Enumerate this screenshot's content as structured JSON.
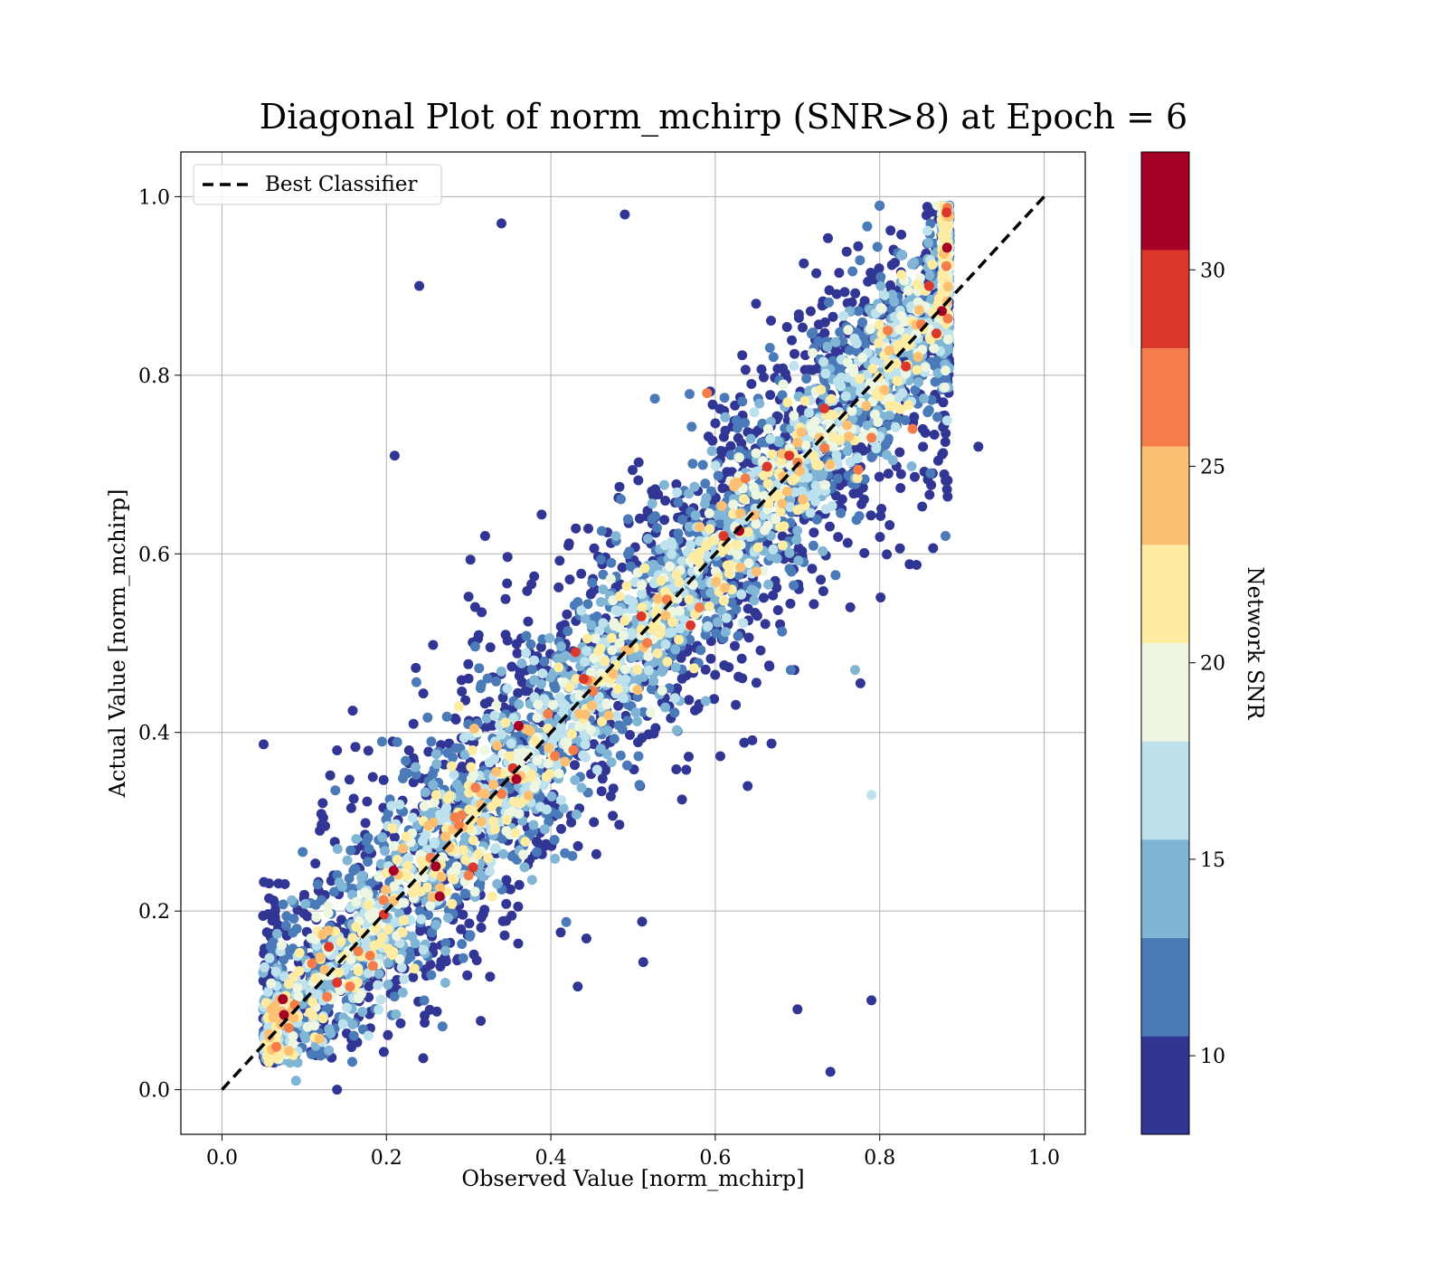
{
  "chart_data": {
    "type": "scatter",
    "title": "Diagonal Plot of norm_mchirp (SNR>8) at Epoch = 6",
    "xlabel": "Observed Value [norm_mchirp]",
    "ylabel": "Actual Value [norm_mchirp]",
    "xlim": [
      -0.05,
      1.05
    ],
    "ylim": [
      -0.05,
      1.05
    ],
    "xticks": [
      "0.0",
      "0.2",
      "0.4",
      "0.6",
      "0.8",
      "1.0"
    ],
    "yticks": [
      "0.0",
      "0.2",
      "0.4",
      "0.6",
      "0.8",
      "1.0"
    ],
    "grid": true,
    "legend": {
      "position": "top-left",
      "entries": [
        "Best Classifier"
      ]
    },
    "reference_line": {
      "name": "Best Classifier",
      "style": "dashed",
      "color": "#000000",
      "x": [
        0,
        1
      ],
      "y": [
        0,
        1
      ]
    },
    "colorbar": {
      "label": "Network SNR",
      "range": [
        8,
        33
      ],
      "ticks": [
        "10",
        "15",
        "20",
        "25",
        "30"
      ],
      "tick_values": [
        10,
        15,
        20,
        25,
        30
      ],
      "bins": [
        {
          "from": 8,
          "to": 10.5,
          "color": "#313695"
        },
        {
          "from": 10.5,
          "to": 13,
          "color": "#4a7ab7"
        },
        {
          "from": 13,
          "to": 15.5,
          "color": "#80b5d6"
        },
        {
          "from": 15.5,
          "to": 18,
          "color": "#bde2ed"
        },
        {
          "from": 18,
          "to": 20.5,
          "color": "#ecf6e1"
        },
        {
          "from": 20.5,
          "to": 23,
          "color": "#fdeca1"
        },
        {
          "from": 23,
          "to": 25.5,
          "color": "#fdbf71"
        },
        {
          "from": 25.5,
          "to": 28,
          "color": "#f57d4a"
        },
        {
          "from": 28,
          "to": 30.5,
          "color": "#db382b"
        },
        {
          "from": 30.5,
          "to": 33,
          "color": "#a50026"
        }
      ]
    },
    "series": [
      {
        "representative_points": [
          {
            "x": 0.26,
            "y": 0.25,
            "snr": 32
          },
          {
            "x": 0.61,
            "y": 0.62,
            "snr": 30
          },
          {
            "x": 0.69,
            "y": 0.71,
            "snr": 30
          },
          {
            "x": 0.51,
            "y": 0.53,
            "snr": 30
          },
          {
            "x": 0.43,
            "y": 0.49,
            "snr": 29
          },
          {
            "x": 0.44,
            "y": 0.46,
            "snr": 29
          },
          {
            "x": 0.14,
            "y": 0.12,
            "snr": 29
          },
          {
            "x": 0.13,
            "y": 0.16,
            "snr": 29
          },
          {
            "x": 0.57,
            "y": 0.52,
            "snr": 28
          },
          {
            "x": 0.86,
            "y": 0.9,
            "snr": 28
          },
          {
            "x": 0.84,
            "y": 0.74,
            "snr": 27
          },
          {
            "x": 0.81,
            "y": 0.85,
            "snr": 27
          },
          {
            "x": 0.59,
            "y": 0.78,
            "snr": 26
          },
          {
            "x": 0.3,
            "y": 0.24,
            "snr": 26
          },
          {
            "x": 0.18,
            "y": 0.15,
            "snr": 26
          },
          {
            "x": 0.79,
            "y": 0.73,
            "snr": 26
          },
          {
            "x": 0.74,
            "y": 0.7,
            "snr": 25
          },
          {
            "x": 0.45,
            "y": 0.43,
            "snr": 25
          },
          {
            "x": 0.36,
            "y": 0.35,
            "snr": 25
          },
          {
            "x": 0.65,
            "y": 0.58,
            "snr": 24
          },
          {
            "x": 0.53,
            "y": 0.55,
            "snr": 24
          },
          {
            "x": 0.22,
            "y": 0.27,
            "snr": 24
          },
          {
            "x": 0.92,
            "y": 0.72,
            "snr": 9
          },
          {
            "x": 0.79,
            "y": 0.1,
            "snr": 9
          },
          {
            "x": 0.74,
            "y": 0.02,
            "snr": 9
          },
          {
            "x": 0.34,
            "y": 0.97,
            "snr": 9
          },
          {
            "x": 0.24,
            "y": 0.9,
            "snr": 9
          },
          {
            "x": 0.21,
            "y": 0.71,
            "snr": 9
          },
          {
            "x": 0.14,
            "y": 0.38,
            "snr": 9
          },
          {
            "x": 0.14,
            "y": 0.0,
            "snr": 9
          },
          {
            "x": 0.49,
            "y": 0.98,
            "snr": 9
          },
          {
            "x": 0.7,
            "y": 0.09,
            "snr": 9
          },
          {
            "x": 0.79,
            "y": 0.33,
            "snr": 16
          },
          {
            "x": 0.8,
            "y": 0.99,
            "snr": 12
          },
          {
            "x": 0.87,
            "y": 0.99,
            "snr": 19
          },
          {
            "x": 0.09,
            "y": 0.01,
            "snr": 15
          },
          {
            "x": 0.05,
            "y": 0.09,
            "snr": 13
          },
          {
            "x": 0.77,
            "y": 0.47,
            "snr": 14
          },
          {
            "x": 0.88,
            "y": 0.62,
            "snr": 12
          },
          {
            "x": 0.32,
            "y": 0.62,
            "snr": 10
          }
        ]
      }
    ]
  }
}
